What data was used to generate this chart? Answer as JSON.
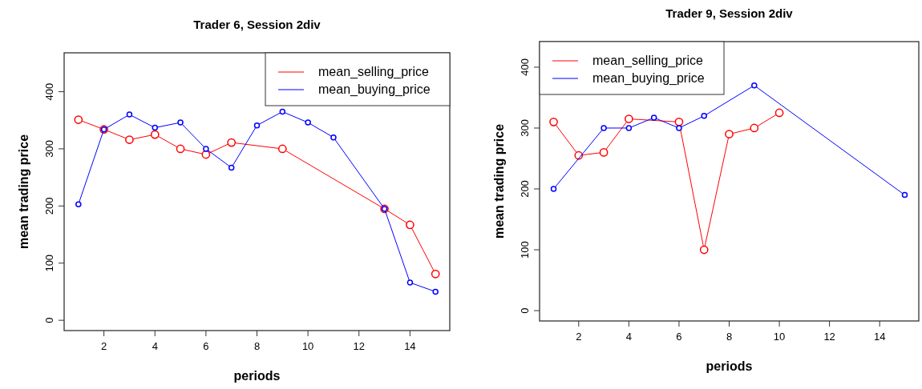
{
  "chart_data": [
    {
      "type": "line",
      "title": "Trader 6, Session 2div",
      "xlabel": "periods",
      "ylabel": "mean trading price",
      "xlim": [
        0.44,
        15.56
      ],
      "xticks": [
        2,
        4,
        6,
        8,
        10,
        12,
        14
      ],
      "ylim": [
        -18,
        468
      ],
      "yticks": [
        0,
        100,
        200,
        300,
        400
      ],
      "grid": false,
      "legend": "top right",
      "marker": "circle",
      "line_style": "solid",
      "series": [
        {
          "name": "mean_selling_price",
          "color": "#ff0000",
          "x": [
            1,
            2,
            3,
            4,
            5,
            6,
            7,
            9,
            13,
            14,
            15
          ],
          "values": [
            351,
            334,
            316,
            325,
            300,
            290,
            311,
            300,
            195,
            167,
            81
          ]
        },
        {
          "name": "mean_buying_price",
          "color": "#0000ff",
          "x": [
            1,
            2,
            3,
            4,
            5,
            6,
            7,
            8,
            9,
            10,
            11,
            13,
            14,
            15
          ],
          "values": [
            203,
            334,
            360,
            337,
            346,
            300,
            267,
            341,
            365,
            346,
            320,
            195,
            66,
            50
          ]
        }
      ]
    },
    {
      "type": "line",
      "title": "Trader 9, Session 2div",
      "xlabel": "periods",
      "ylabel": "mean trading price",
      "xlim": [
        0.44,
        15.56
      ],
      "xticks": [
        2,
        4,
        6,
        8,
        10,
        12,
        14
      ],
      "ylim": [
        -17,
        442
      ],
      "yticks": [
        0,
        100,
        200,
        300,
        400
      ],
      "grid": false,
      "legend": "top left",
      "marker": "circle",
      "line_style": "solid",
      "series": [
        {
          "name": "mean_selling_price",
          "color": "#ff0000",
          "x": [
            1,
            2,
            3,
            4,
            6,
            7,
            8,
            9,
            10
          ],
          "values": [
            310,
            255,
            260,
            315,
            310,
            100,
            290,
            300,
            325
          ]
        },
        {
          "name": "mean_buying_price",
          "color": "#0000ff",
          "x": [
            1,
            3,
            4,
            5,
            6,
            7,
            9,
            15
          ],
          "values": [
            200,
            300,
            300,
            317,
            300,
            320,
            370,
            190
          ]
        }
      ]
    }
  ]
}
